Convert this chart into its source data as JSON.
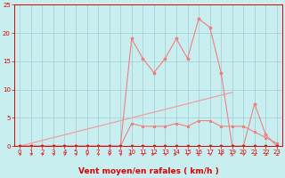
{
  "x": [
    0,
    1,
    2,
    3,
    4,
    5,
    6,
    7,
    8,
    9,
    10,
    11,
    12,
    13,
    14,
    15,
    16,
    17,
    18,
    19,
    20,
    21,
    22,
    23
  ],
  "rafales": [
    0,
    0,
    0,
    0,
    0,
    0,
    0,
    0,
    0,
    0,
    19.0,
    15.5,
    13.0,
    15.5,
    19.0,
    15.5,
    22.5,
    21.0,
    13.0,
    0,
    0,
    7.5,
    2.0,
    0
  ],
  "vent_moyen": [
    0,
    0,
    0,
    0,
    0,
    0,
    0,
    0,
    0,
    0,
    4.0,
    3.5,
    3.5,
    3.5,
    4.0,
    3.5,
    4.5,
    4.5,
    3.5,
    3.5,
    3.5,
    2.5,
    1.5,
    0.5
  ],
  "vent_min": [
    0,
    0,
    0,
    0,
    0,
    0,
    0,
    0,
    0,
    0,
    0,
    0,
    0,
    0,
    0,
    0,
    0,
    0,
    0,
    0,
    0,
    0,
    0,
    0
  ],
  "trend_x": [
    0,
    19
  ],
  "trend_y": [
    0,
    9.5
  ],
  "arrows_x": [
    0,
    1,
    2,
    3,
    4,
    5,
    6,
    7,
    8,
    9,
    10,
    11,
    12,
    13,
    14,
    15,
    16,
    17,
    18,
    19,
    20,
    21,
    22,
    23
  ],
  "arrows_deg": [
    45,
    45,
    45,
    45,
    45,
    45,
    45,
    45,
    45,
    45,
    90,
    45,
    90,
    45,
    90,
    45,
    0,
    45,
    45,
    0,
    45,
    135,
    135,
    135
  ],
  "background_color": "#c8eef0",
  "grid_color": "#9ecdd4",
  "line_color_rafales": "#f08080",
  "line_color_moyen": "#f08080",
  "trend_color": "#f0a0a0",
  "arrow_color": "#dd3333",
  "text_color": "#dd0000",
  "axis_color": "#dd0000",
  "marker_color_dark": "#cc2222",
  "marker_color_light": "#f08080",
  "ylim": [
    0,
    25
  ],
  "xlim": [
    -0.5,
    23.5
  ],
  "yticks": [
    0,
    5,
    10,
    15,
    20,
    25
  ],
  "xticks": [
    0,
    1,
    2,
    3,
    4,
    5,
    6,
    7,
    8,
    9,
    10,
    11,
    12,
    13,
    14,
    15,
    16,
    17,
    18,
    19,
    20,
    21,
    22,
    23
  ],
  "xlabel": "Vent moyen/en rafales ( km/h )",
  "xlabel_fontsize": 6.5,
  "tick_fontsize": 5.0
}
